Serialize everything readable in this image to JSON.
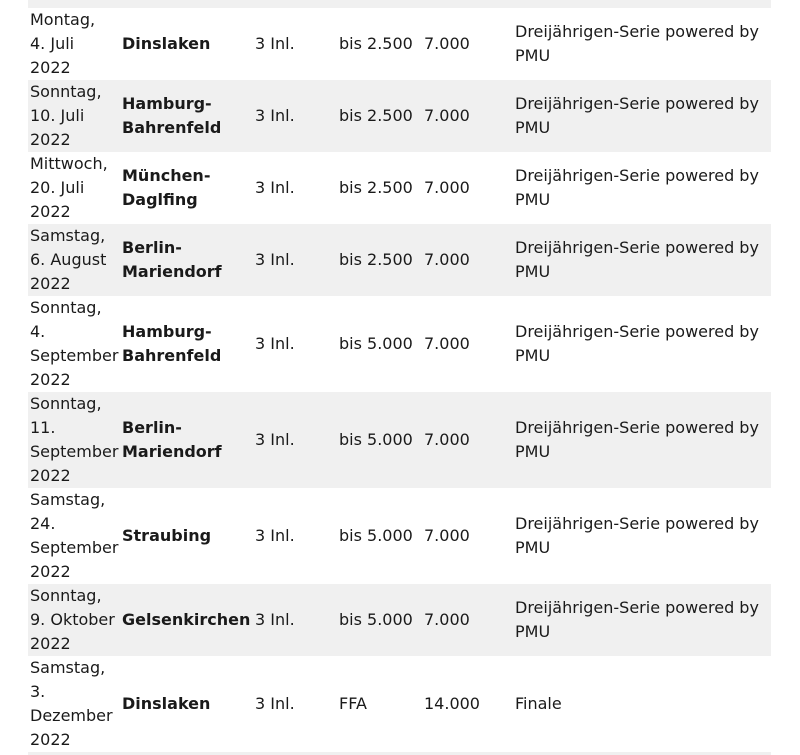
{
  "colors": {
    "row_alt_bg": "#f0f0f0",
    "row_bg": "#ffffff",
    "text": "#1a1a1a"
  },
  "table": {
    "rows": [
      {
        "date": "Montag,\n4. Juli\n2022",
        "track": "Dinslaken",
        "starters": "3 Inl.",
        "condition": "bis 2.500",
        "purse": "7.000",
        "note": "Dreijährigen-Serie powered by\nPMU"
      },
      {
        "date": "Sonntag,\n10. Juli\n2022",
        "track": "Hamburg-\nBahrenfeld",
        "starters": "3 Inl.",
        "condition": "bis 2.500",
        "purse": "7.000",
        "note": "Dreijährigen-Serie powered by\nPMU"
      },
      {
        "date": "Mittwoch,\n20. Juli\n2022",
        "track": "München-\nDaglfing",
        "starters": "3 Inl.",
        "condition": "bis 2.500",
        "purse": "7.000",
        "note": "Dreijährigen-Serie powered by\nPMU"
      },
      {
        "date": "Samstag,\n6. August\n2022",
        "track": "Berlin-\nMariendorf",
        "starters": "3 Inl.",
        "condition": "bis 2.500",
        "purse": "7.000",
        "note": "Dreijährigen-Serie powered by\nPMU"
      },
      {
        "date": "Sonntag,\n4.\nSeptember\n2022",
        "track": "Hamburg-\nBahrenfeld",
        "starters": "3 Inl.",
        "condition": "bis 5.000",
        "purse": "7.000",
        "note": "Dreijährigen-Serie powered by\nPMU"
      },
      {
        "date": "Sonntag,\n11.\nSeptember\n2022",
        "track": "Berlin-\nMariendorf",
        "starters": "3 Inl.",
        "condition": "bis 5.000",
        "purse": "7.000",
        "note": "Dreijährigen-Serie powered by\nPMU"
      },
      {
        "date": "Samstag,\n24.\nSeptember\n2022",
        "track": "Straubing",
        "starters": "3 Inl.",
        "condition": "bis 5.000",
        "purse": "7.000",
        "note": "Dreijährigen-Serie powered by\nPMU"
      },
      {
        "date": "Sonntag,\n9. Oktober\n2022",
        "track": "Gelsenkirchen",
        "starters": "3 Inl.",
        "condition": "bis 5.000",
        "purse": "7.000",
        "note": "Dreijährigen-Serie powered by\nPMU"
      },
      {
        "date": "Samstag,\n3.\nDezember\n2022",
        "track": "Dinslaken",
        "starters": "3 Inl.",
        "condition": "FFA",
        "purse": "14.000",
        "note": "Finale"
      }
    ]
  }
}
